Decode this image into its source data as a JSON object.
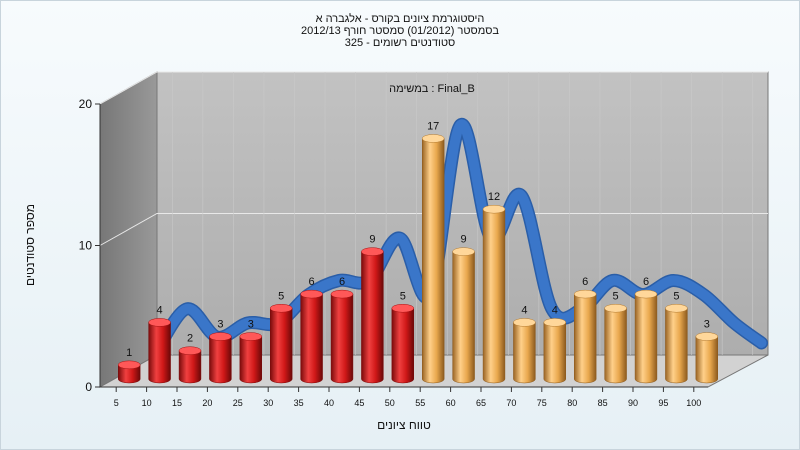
{
  "chart_data": {
    "type": "bar",
    "title": "היסטוגרמת ציונים בקורס - אלגברה א",
    "subtitle": "בסמסטר  (01/2012)  סמסטר חורף 2012/13",
    "subtitle2": "סטודנטים רשומים - 325",
    "annotation": "במשימה : Final_B",
    "xlabel": "טווח ציונים",
    "ylabel": "מספר סטודנטים",
    "categories": [
      "5",
      "10",
      "15",
      "20",
      "25",
      "30",
      "35",
      "40",
      "45",
      "50",
      "55",
      "60",
      "65",
      "70",
      "75",
      "80",
      "85",
      "90",
      "95",
      "100"
    ],
    "values": [
      1,
      4,
      2,
      3,
      3,
      5,
      6,
      6,
      9,
      5,
      17,
      9,
      12,
      4,
      4,
      6,
      5,
      6,
      5,
      3
    ],
    "bar_colors": [
      "red",
      "red",
      "red",
      "red",
      "red",
      "red",
      "red",
      "red",
      "red",
      "red",
      "orange",
      "orange",
      "orange",
      "orange",
      "orange",
      "orange",
      "orange",
      "orange",
      "orange",
      "orange"
    ],
    "yticks": [
      0,
      10,
      20
    ],
    "ylim": [
      0,
      20
    ],
    "trend_line": true,
    "grid": true,
    "colors": {
      "red_bar": "#d81e1e",
      "orange_bar": "#e7a750",
      "trend": "#3a76c9",
      "back_wall": "#b9b9b9",
      "side_wall": "#8f8f8f",
      "floor": "#cfcfcf"
    }
  }
}
